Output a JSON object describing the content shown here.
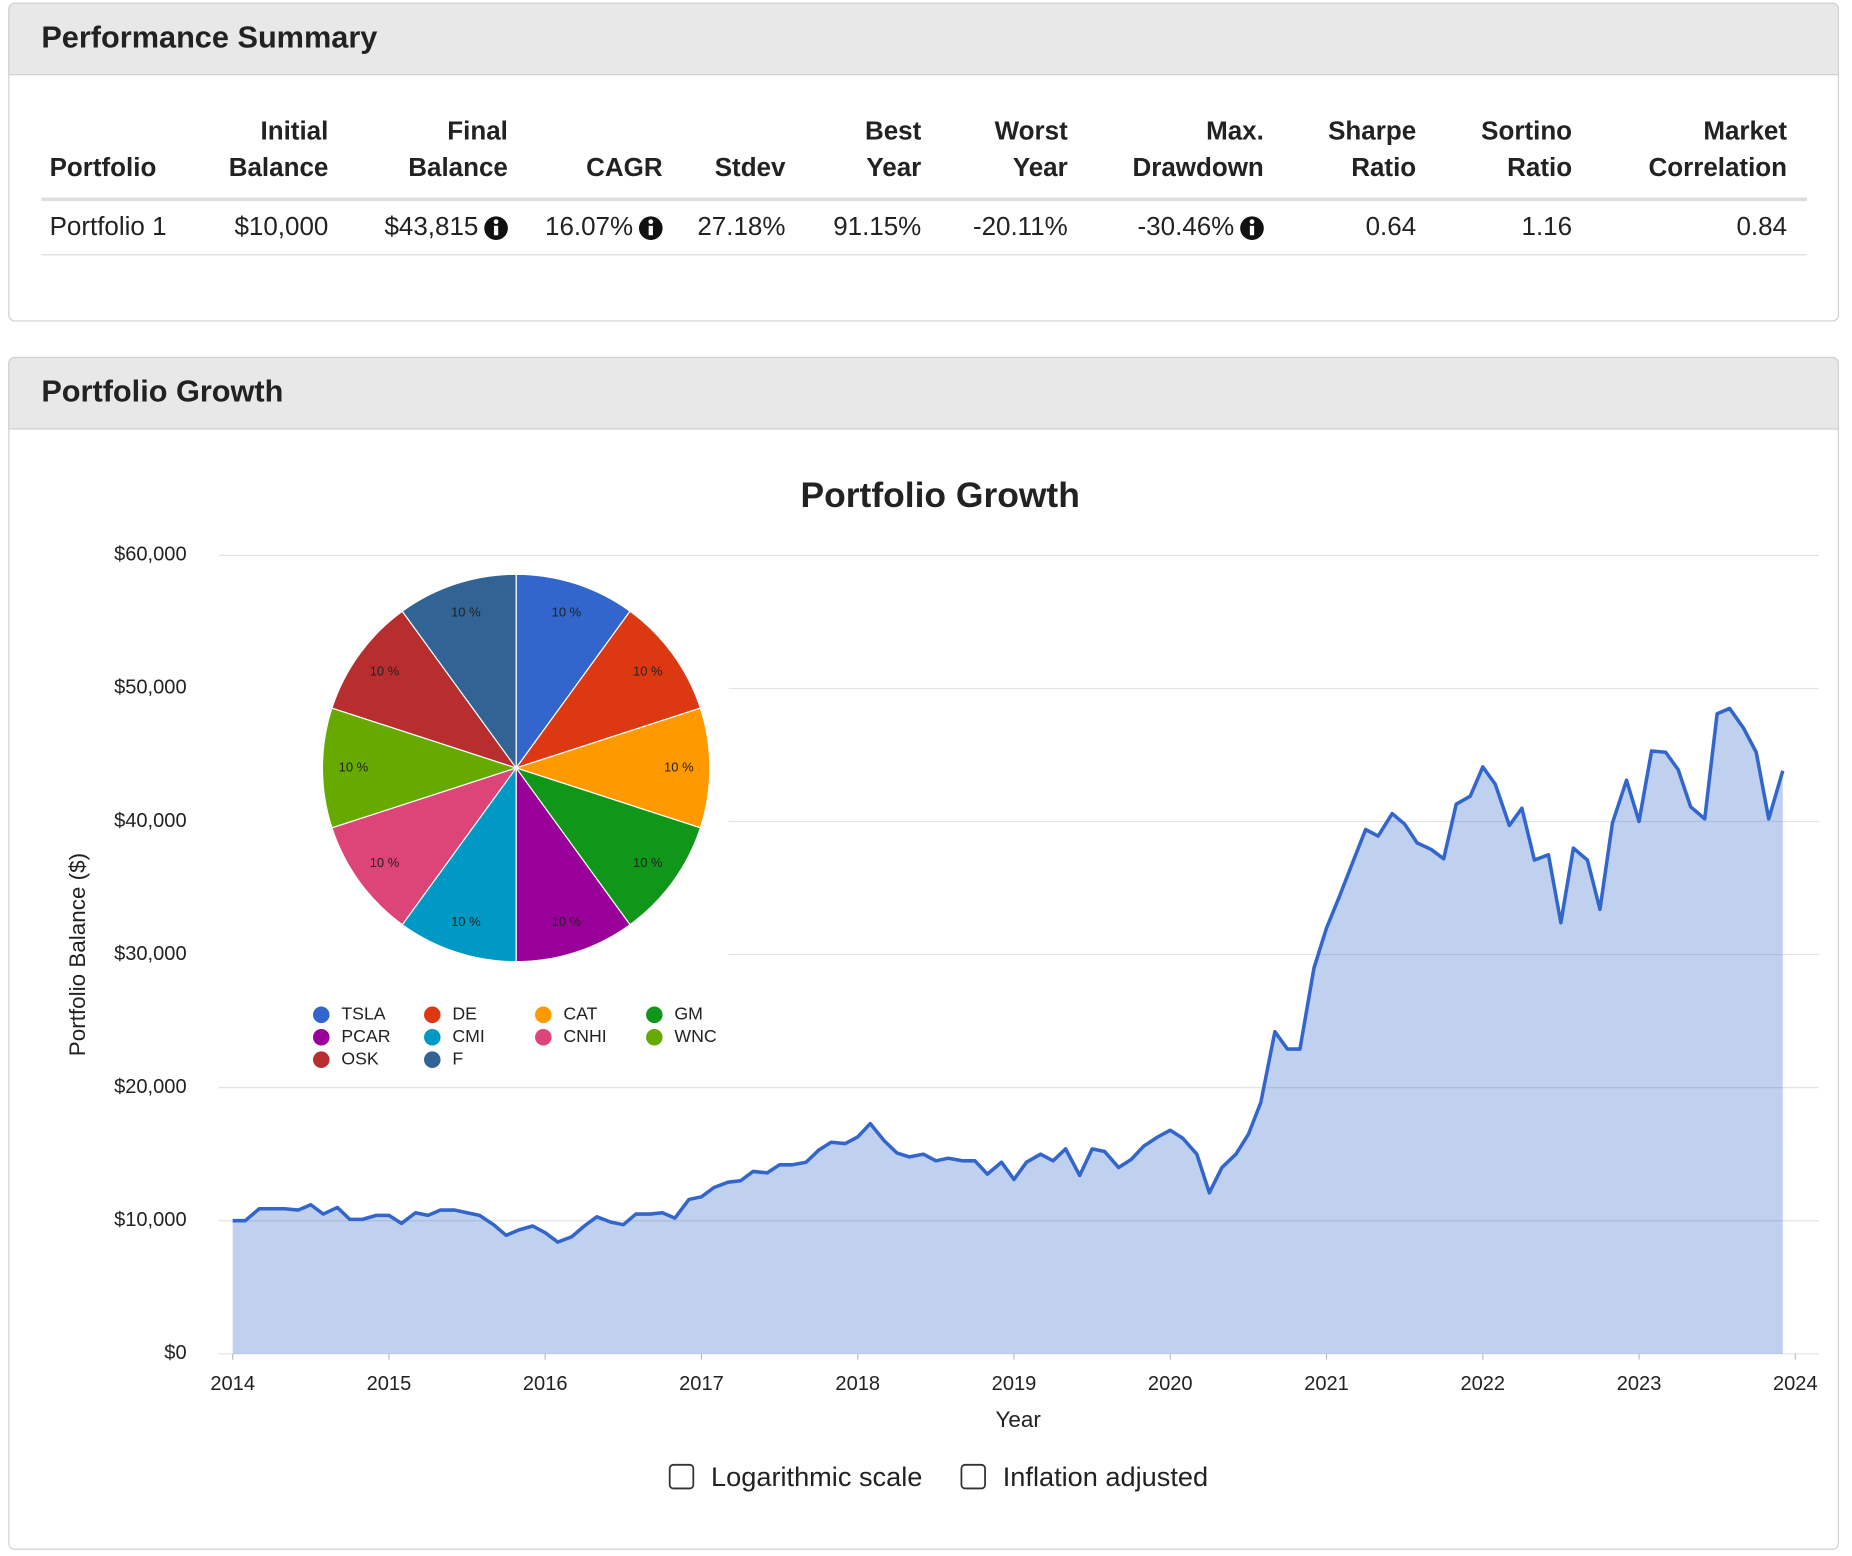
{
  "summary": {
    "title": "Performance Summary",
    "headers": [
      [
        "Portfolio"
      ],
      [
        "Initial",
        "Balance"
      ],
      [
        "Final",
        "Balance"
      ],
      [
        "CAGR"
      ],
      [
        "Stdev"
      ],
      [
        "Best",
        "Year"
      ],
      [
        "Worst",
        "Year"
      ],
      [
        "Max.",
        "Drawdown"
      ],
      [
        "Sharpe",
        "Ratio"
      ],
      [
        "Sortino",
        "Ratio"
      ],
      [
        "Market",
        "Correlation"
      ]
    ],
    "rows": [
      [
        "Portfolio 1",
        "$10,000",
        "$43,815",
        "16.07%",
        "27.18%",
        "91.15%",
        "-20.11%",
        "-30.46%",
        "0.64",
        "1.16",
        "0.84"
      ]
    ]
  },
  "panel_title": "Portfolio Growth",
  "chart_data": [
    {
      "type": "area",
      "title": "Portfolio Growth",
      "x_label": "Year",
      "y_label": "Portfolio Balance ($)",
      "x": [
        2014,
        2014.08,
        2014.17,
        2014.25,
        2014.33,
        2014.42,
        2014.5,
        2014.58,
        2014.67,
        2014.75,
        2014.83,
        2014.92,
        2015,
        2015.08,
        2015.17,
        2015.25,
        2015.33,
        2015.42,
        2015.5,
        2015.58,
        2015.67,
        2015.75,
        2015.83,
        2015.92,
        2016,
        2016.08,
        2016.17,
        2016.25,
        2016.33,
        2016.42,
        2016.5,
        2016.58,
        2016.67,
        2016.75,
        2016.83,
        2016.92,
        2017,
        2017.08,
        2017.17,
        2017.25,
        2017.33,
        2017.42,
        2017.5,
        2017.58,
        2017.67,
        2017.75,
        2017.83,
        2017.92,
        2018,
        2018.08,
        2018.17,
        2018.25,
        2018.33,
        2018.42,
        2018.5,
        2018.58,
        2018.67,
        2018.75,
        2018.83,
        2018.92,
        2019,
        2019.08,
        2019.17,
        2019.25,
        2019.33,
        2019.42,
        2019.5,
        2019.58,
        2019.67,
        2019.75,
        2019.83,
        2019.92,
        2020,
        2020.08,
        2020.17,
        2020.25,
        2020.33,
        2020.42,
        2020.5,
        2020.58,
        2020.67,
        2020.75,
        2020.83,
        2020.92,
        2021,
        2021.08,
        2021.17,
        2021.25,
        2021.33,
        2021.42,
        2021.5,
        2021.58,
        2021.67,
        2021.75,
        2021.83,
        2021.92,
        2022,
        2022.08,
        2022.17,
        2022.25,
        2022.33,
        2022.42,
        2022.5,
        2022.58,
        2022.67,
        2022.75,
        2022.83,
        2022.92,
        2023,
        2023.08,
        2023.17,
        2023.25,
        2023.33,
        2023.42,
        2023.5,
        2023.58,
        2023.67,
        2023.75,
        2023.83,
        2023.92
      ],
      "series": [
        {
          "name": "Portfolio 1",
          "color": "#3366cc",
          "values": [
            10000,
            10000,
            10900,
            10900,
            10900,
            10800,
            11200,
            10500,
            11000,
            10100,
            10100,
            10400,
            10400,
            9800,
            10600,
            10400,
            10800,
            10800,
            10600,
            10400,
            9700,
            8900,
            9300,
            9600,
            9100,
            8400,
            8800,
            9600,
            10300,
            9900,
            9700,
            10500,
            10500,
            10600,
            10200,
            11600,
            11800,
            12500,
            12900,
            13000,
            13700,
            13600,
            14200,
            14200,
            14400,
            15300,
            15900,
            15800,
            16300,
            17300,
            16000,
            15100,
            14800,
            15000,
            14500,
            14700,
            14500,
            14500,
            13500,
            14400,
            13100,
            14400,
            15000,
            14500,
            15400,
            13400,
            15400,
            15200,
            14000,
            14600,
            15600,
            16300,
            16800,
            16200,
            15000,
            12100,
            14000,
            15000,
            16500,
            18900,
            24200,
            22900,
            22900,
            29000,
            32000,
            34300,
            37000,
            39400,
            38900,
            40600,
            39800,
            38400,
            37900,
            37200,
            41300,
            41900,
            44100,
            42800,
            39700,
            41000,
            37100,
            37500,
            32400,
            38000,
            37100,
            33400,
            39900,
            43100,
            40000,
            45300,
            45200,
            43900,
            41100,
            40200,
            48100,
            48500,
            47000,
            45200,
            40200,
            43815
          ]
        }
      ],
      "xlim": [
        2014,
        2024
      ],
      "xticks": [
        2014,
        2015,
        2016,
        2017,
        2018,
        2019,
        2020,
        2021,
        2022,
        2023,
        2024
      ],
      "ylim": [
        0,
        60000
      ],
      "yticks": [
        {
          "value": 0,
          "label": "$0"
        },
        {
          "value": 10000,
          "label": "$10,000"
        },
        {
          "value": 20000,
          "label": "$20,000"
        },
        {
          "value": 30000,
          "label": "$30,000"
        },
        {
          "value": 40000,
          "label": "$40,000"
        },
        {
          "value": 50000,
          "label": "$50,000"
        },
        {
          "value": 60000,
          "label": "$60,000"
        }
      ],
      "grid": true,
      "log_scale": false
    },
    {
      "type": "pie",
      "categories": [
        "TSLA",
        "DE",
        "CAT",
        "GM",
        "PCAR",
        "CMI",
        "CNHI",
        "WNC",
        "OSK",
        "F"
      ],
      "values": [
        10,
        10,
        10,
        10,
        10,
        10,
        10,
        10,
        10,
        10
      ],
      "value_labels": [
        "10 %",
        "10 %",
        "10 %",
        "10 %",
        "10 %",
        "10 %",
        "10 %",
        "10 %",
        "10 %",
        "10 %"
      ],
      "colors": [
        "#3366cc",
        "#dc3912",
        "#ff9900",
        "#109618",
        "#990099",
        "#0099c6",
        "#dd4477",
        "#66aa00",
        "#b82e2e",
        "#316395"
      ]
    }
  ],
  "controls": [
    {
      "label": "Logarithmic scale",
      "checked": false
    },
    {
      "label": "Inflation adjusted",
      "checked": false
    }
  ]
}
